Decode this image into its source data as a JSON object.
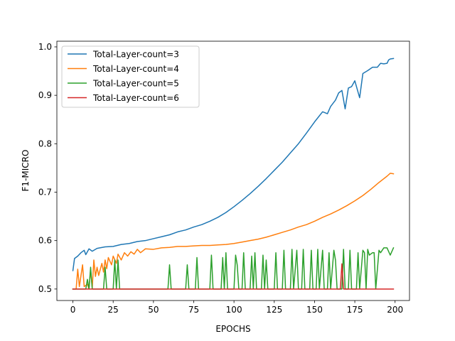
{
  "chart_data": {
    "type": "line",
    "title": "",
    "xlabel": "EPOCHS",
    "ylabel": "F1-MICRO",
    "xlim": [
      -9.95,
      208.95
    ],
    "ylim": [
      0.4763,
      1.0117
    ],
    "xticks": [
      0,
      25,
      50,
      75,
      100,
      125,
      150,
      175,
      200
    ],
    "yticks": [
      0.5,
      0.6,
      0.7,
      0.8,
      0.9,
      1.0
    ],
    "xtick_labels": [
      "0",
      "25",
      "50",
      "75",
      "100",
      "125",
      "150",
      "175",
      "200"
    ],
    "ytick_labels": [
      "0.5",
      "0.6",
      "0.7",
      "0.8",
      "0.9",
      "1.0"
    ],
    "grid": false,
    "legend_position": "top-left",
    "series": [
      {
        "name": "Total-Layer-count=3",
        "color": "#1f77b4",
        "points": [
          [
            0,
            0.538
          ],
          [
            1,
            0.563
          ],
          [
            3,
            0.568
          ],
          [
            5,
            0.575
          ],
          [
            7,
            0.58
          ],
          [
            8,
            0.571
          ],
          [
            10,
            0.583
          ],
          [
            12,
            0.578
          ],
          [
            15,
            0.584
          ],
          [
            20,
            0.587
          ],
          [
            25,
            0.588
          ],
          [
            30,
            0.592
          ],
          [
            35,
            0.594
          ],
          [
            40,
            0.598
          ],
          [
            45,
            0.6
          ],
          [
            50,
            0.604
          ],
          [
            55,
            0.608
          ],
          [
            60,
            0.612
          ],
          [
            65,
            0.618
          ],
          [
            70,
            0.622
          ],
          [
            75,
            0.628
          ],
          [
            80,
            0.633
          ],
          [
            85,
            0.64
          ],
          [
            90,
            0.648
          ],
          [
            95,
            0.658
          ],
          [
            100,
            0.67
          ],
          [
            105,
            0.683
          ],
          [
            110,
            0.697
          ],
          [
            115,
            0.712
          ],
          [
            120,
            0.728
          ],
          [
            125,
            0.745
          ],
          [
            130,
            0.762
          ],
          [
            135,
            0.781
          ],
          [
            140,
            0.8
          ],
          [
            145,
            0.822
          ],
          [
            150,
            0.845
          ],
          [
            155,
            0.866
          ],
          [
            158,
            0.862
          ],
          [
            160,
            0.877
          ],
          [
            163,
            0.89
          ],
          [
            165,
            0.905
          ],
          [
            167,
            0.91
          ],
          [
            169,
            0.872
          ],
          [
            171,
            0.915
          ],
          [
            173,
            0.918
          ],
          [
            175,
            0.93
          ],
          [
            178,
            0.895
          ],
          [
            180,
            0.945
          ],
          [
            183,
            0.951
          ],
          [
            186,
            0.958
          ],
          [
            189,
            0.958
          ],
          [
            191,
            0.966
          ],
          [
            193,
            0.965
          ],
          [
            195,
            0.966
          ],
          [
            196,
            0.973
          ],
          [
            197,
            0.975
          ],
          [
            199,
            0.976
          ]
        ]
      },
      {
        "name": "Total-Layer-count=4",
        "color": "#ff7f0e",
        "points": [
          [
            0,
            0.5
          ],
          [
            2,
            0.5
          ],
          [
            3,
            0.541
          ],
          [
            4,
            0.505
          ],
          [
            6,
            0.55
          ],
          [
            7,
            0.505
          ],
          [
            9,
            0.51
          ],
          [
            10,
            0.5
          ],
          [
            11,
            0.54
          ],
          [
            12,
            0.502
          ],
          [
            13,
            0.56
          ],
          [
            14,
            0.526
          ],
          [
            15,
            0.545
          ],
          [
            16,
            0.528
          ],
          [
            18,
            0.553
          ],
          [
            19,
            0.535
          ],
          [
            20,
            0.56
          ],
          [
            21,
            0.542
          ],
          [
            22,
            0.565
          ],
          [
            24,
            0.55
          ],
          [
            25,
            0.568
          ],
          [
            27,
            0.553
          ],
          [
            28,
            0.572
          ],
          [
            30,
            0.56
          ],
          [
            32,
            0.575
          ],
          [
            34,
            0.568
          ],
          [
            36,
            0.577
          ],
          [
            38,
            0.572
          ],
          [
            40,
            0.582
          ],
          [
            42,
            0.575
          ],
          [
            45,
            0.583
          ],
          [
            50,
            0.582
          ],
          [
            55,
            0.585
          ],
          [
            60,
            0.586
          ],
          [
            65,
            0.588
          ],
          [
            70,
            0.588
          ],
          [
            75,
            0.589
          ],
          [
            80,
            0.59
          ],
          [
            85,
            0.59
          ],
          [
            90,
            0.591
          ],
          [
            95,
            0.592
          ],
          [
            100,
            0.594
          ],
          [
            105,
            0.597
          ],
          [
            110,
            0.6
          ],
          [
            115,
            0.603
          ],
          [
            120,
            0.607
          ],
          [
            125,
            0.612
          ],
          [
            130,
            0.617
          ],
          [
            135,
            0.622
          ],
          [
            140,
            0.628
          ],
          [
            145,
            0.633
          ],
          [
            150,
            0.64
          ],
          [
            155,
            0.648
          ],
          [
            160,
            0.655
          ],
          [
            165,
            0.663
          ],
          [
            170,
            0.672
          ],
          [
            175,
            0.682
          ],
          [
            180,
            0.693
          ],
          [
            185,
            0.706
          ],
          [
            190,
            0.72
          ],
          [
            195,
            0.733
          ],
          [
            197,
            0.739
          ],
          [
            199,
            0.738
          ]
        ]
      },
      {
        "name": "Total-Layer-count=5",
        "color": "#2ca02c",
        "points": [
          [
            0,
            0.5
          ],
          [
            8,
            0.5
          ],
          [
            9,
            0.52
          ],
          [
            10,
            0.5
          ],
          [
            11,
            0.545
          ],
          [
            12,
            0.5
          ],
          [
            19,
            0.5
          ],
          [
            20,
            0.545
          ],
          [
            21,
            0.5
          ],
          [
            25,
            0.5
          ],
          [
            26,
            0.56
          ],
          [
            27,
            0.5
          ],
          [
            28,
            0.56
          ],
          [
            29,
            0.5
          ],
          [
            59,
            0.5
          ],
          [
            60,
            0.55
          ],
          [
            61,
            0.5
          ],
          [
            70,
            0.5
          ],
          [
            71,
            0.55
          ],
          [
            72,
            0.5
          ],
          [
            76,
            0.5
          ],
          [
            77,
            0.565
          ],
          [
            78,
            0.5
          ],
          [
            85,
            0.5
          ],
          [
            86,
            0.57
          ],
          [
            87,
            0.5
          ],
          [
            92,
            0.5
          ],
          [
            93,
            0.565
          ],
          [
            94,
            0.5
          ],
          [
            95,
            0.575
          ],
          [
            96,
            0.5
          ],
          [
            100,
            0.5
          ],
          [
            101,
            0.57
          ],
          [
            102,
            0.55
          ],
          [
            103,
            0.5
          ],
          [
            105,
            0.5
          ],
          [
            106,
            0.575
          ],
          [
            107,
            0.5
          ],
          [
            110,
            0.5
          ],
          [
            111,
            0.568
          ],
          [
            112,
            0.5
          ],
          [
            113,
            0.575
          ],
          [
            114,
            0.5
          ],
          [
            117,
            0.5
          ],
          [
            118,
            0.57
          ],
          [
            119,
            0.5
          ],
          [
            120,
            0.56
          ],
          [
            121,
            0.5
          ],
          [
            125,
            0.5
          ],
          [
            126,
            0.575
          ],
          [
            127,
            0.5
          ],
          [
            130,
            0.5
          ],
          [
            131,
            0.58
          ],
          [
            132,
            0.5
          ],
          [
            135,
            0.5
          ],
          [
            136,
            0.582
          ],
          [
            137,
            0.5
          ],
          [
            139,
            0.58
          ],
          [
            140,
            0.5
          ],
          [
            142,
            0.5
          ],
          [
            143,
            0.582
          ],
          [
            144,
            0.5
          ],
          [
            147,
            0.5
          ],
          [
            148,
            0.58
          ],
          [
            149,
            0.5
          ],
          [
            151,
            0.5
          ],
          [
            152,
            0.582
          ],
          [
            153,
            0.5
          ],
          [
            155,
            0.58
          ],
          [
            156,
            0.5
          ],
          [
            158,
            0.5
          ],
          [
            159,
            0.575
          ],
          [
            160,
            0.5
          ],
          [
            162,
            0.58
          ],
          [
            163,
            0.56
          ],
          [
            164,
            0.5
          ],
          [
            167,
            0.5
          ],
          [
            168,
            0.582
          ],
          [
            169,
            0.5
          ],
          [
            171,
            0.5
          ],
          [
            172,
            0.58
          ],
          [
            173,
            0.5
          ],
          [
            176,
            0.5
          ],
          [
            177,
            0.575
          ],
          [
            178,
            0.5
          ],
          [
            180,
            0.58
          ],
          [
            181,
            0.575
          ],
          [
            182,
            0.5
          ],
          [
            183,
            0.582
          ],
          [
            184,
            0.57
          ],
          [
            186,
            0.575
          ],
          [
            187,
            0.575
          ],
          [
            188,
            0.5
          ],
          [
            190,
            0.58
          ],
          [
            191,
            0.575
          ],
          [
            193,
            0.585
          ],
          [
            195,
            0.585
          ],
          [
            197,
            0.57
          ],
          [
            199,
            0.585
          ]
        ]
      },
      {
        "name": "Total-Layer-count=6",
        "color": "#d62728",
        "points": [
          [
            0,
            0.5
          ],
          [
            166,
            0.5
          ],
          [
            167,
            0.552
          ],
          [
            168,
            0.5
          ],
          [
            199,
            0.5
          ]
        ]
      }
    ]
  }
}
